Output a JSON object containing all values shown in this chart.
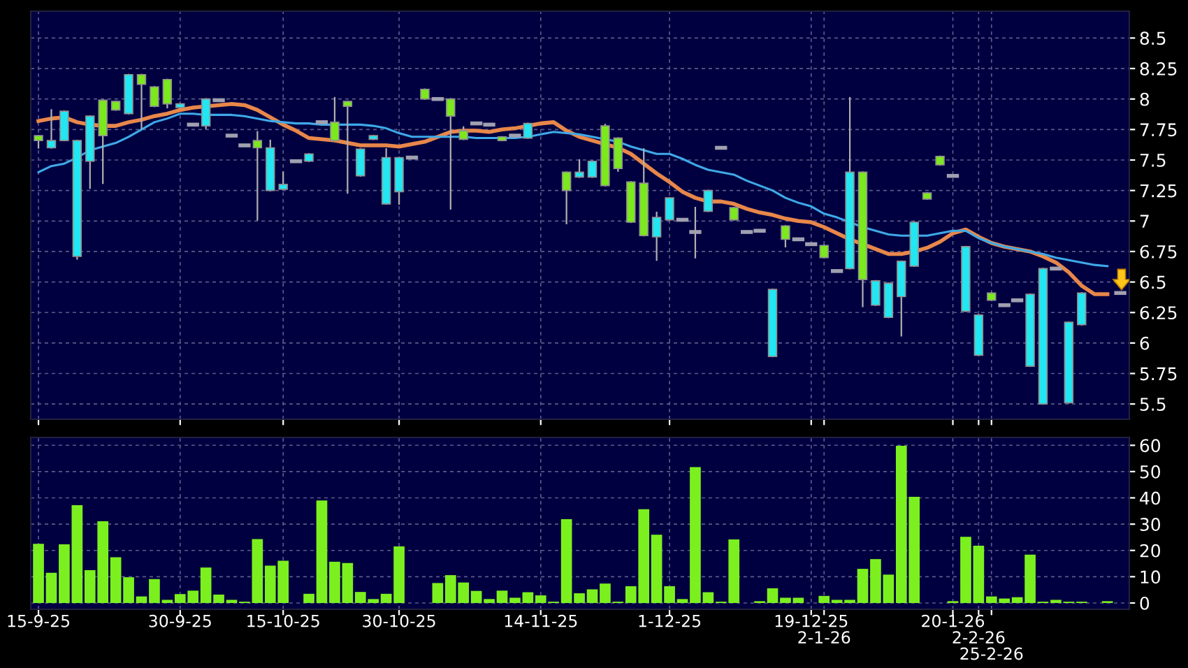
{
  "chart_data": [
    {
      "type": "candlestick",
      "categories": [
        null,
        null,
        null,
        null,
        null,
        null,
        null,
        null,
        null,
        null,
        null,
        null,
        null,
        null,
        null,
        null,
        null,
        null,
        null,
        null,
        null,
        null,
        null,
        null,
        null,
        null,
        null,
        null,
        null,
        null,
        null,
        null,
        null,
        null,
        null,
        null,
        null,
        null,
        null,
        null,
        null,
        null,
        null,
        null,
        null,
        null,
        null,
        null,
        null,
        null,
        null,
        null,
        null,
        null,
        null,
        null,
        null,
        null,
        null,
        null,
        null,
        null,
        null,
        null,
        null,
        null,
        null,
        null,
        null,
        null,
        null,
        null,
        null,
        null,
        null,
        null,
        null,
        null,
        null,
        null,
        null,
        null,
        null,
        null,
        null
      ],
      "ohlc": [
        [
          7.7,
          7.7,
          7.6,
          7.66
        ],
        [
          7.6,
          7.91,
          7.6,
          7.66
        ],
        [
          7.66,
          7.9,
          7.66,
          7.9
        ],
        [
          6.71,
          7.66,
          6.69,
          7.66
        ],
        [
          7.49,
          7.86,
          7.27,
          7.86
        ],
        [
          7.99,
          7.99,
          7.31,
          7.7
        ],
        [
          7.98,
          7.98,
          7.91,
          7.91
        ],
        [
          7.88,
          8.2,
          7.88,
          8.2
        ],
        [
          8.2,
          8.2,
          7.76,
          8.12
        ],
        [
          8.1,
          8.1,
          7.94,
          7.94
        ],
        [
          8.16,
          8.16,
          7.93,
          7.96
        ],
        [
          7.93,
          7.96,
          7.93,
          7.96
        ],
        [
          7.79,
          7.79,
          7.79,
          7.79
        ],
        [
          7.78,
          8.0,
          7.76,
          8.0
        ],
        [
          7.99,
          7.99,
          7.99,
          7.99
        ],
        [
          7.7,
          7.7,
          7.7,
          7.7
        ],
        [
          7.62,
          7.62,
          7.62,
          7.62
        ],
        [
          7.66,
          7.73,
          7.01,
          7.6
        ],
        [
          7.25,
          7.66,
          7.25,
          7.6
        ],
        [
          7.26,
          7.4,
          7.26,
          7.3
        ],
        [
          7.49,
          7.49,
          7.49,
          7.49
        ],
        [
          7.49,
          7.55,
          7.49,
          7.55
        ],
        [
          7.81,
          7.81,
          7.81,
          7.81
        ],
        [
          7.81,
          8.01,
          7.66,
          7.66
        ],
        [
          7.98,
          7.98,
          7.23,
          7.94
        ],
        [
          7.37,
          7.59,
          7.37,
          7.59
        ],
        [
          7.67,
          7.7,
          7.67,
          7.7
        ],
        [
          7.14,
          7.59,
          7.14,
          7.52
        ],
        [
          7.24,
          7.52,
          7.14,
          7.52
        ],
        [
          7.52,
          7.52,
          7.52,
          7.52
        ],
        [
          8.08,
          8.08,
          8.0,
          8.0
        ],
        [
          8.0,
          8.0,
          8.0,
          8.0
        ],
        [
          8.0,
          8.0,
          7.1,
          7.86
        ],
        [
          7.74,
          7.77,
          7.67,
          7.67
        ],
        [
          7.8,
          7.8,
          7.8,
          7.8
        ],
        [
          7.79,
          7.79,
          7.79,
          7.79
        ],
        [
          7.69,
          7.69,
          7.66,
          7.66
        ],
        [
          7.7,
          7.7,
          7.7,
          7.7
        ],
        [
          7.68,
          7.8,
          7.68,
          7.8
        ],
        null,
        null,
        [
          7.4,
          7.4,
          6.98,
          7.25
        ],
        [
          7.36,
          7.5,
          7.36,
          7.4
        ],
        [
          7.36,
          7.49,
          7.36,
          7.49
        ],
        [
          7.78,
          7.79,
          7.29,
          7.29
        ],
        [
          7.68,
          7.68,
          7.41,
          7.43
        ],
        [
          7.32,
          7.32,
          6.99,
          6.99
        ],
        [
          7.31,
          7.59,
          6.88,
          6.88
        ],
        [
          6.87,
          7.07,
          6.68,
          7.03
        ],
        [
          7.01,
          7.19,
          7.01,
          7.19
        ],
        [
          7.01,
          7.01,
          7.01,
          7.01
        ],
        [
          6.91,
          7.11,
          6.7,
          6.91
        ],
        [
          7.08,
          7.25,
          7.08,
          7.25
        ],
        [
          7.6,
          7.6,
          7.6,
          7.6
        ],
        [
          7.11,
          7.11,
          7.01,
          7.01
        ],
        [
          6.91,
          6.91,
          6.91,
          6.91
        ],
        [
          6.92,
          6.92,
          6.92,
          6.92
        ],
        [
          5.89,
          6.44,
          5.89,
          6.44
        ],
        [
          6.96,
          6.96,
          6.79,
          6.85
        ],
        [
          6.85,
          6.85,
          6.85,
          6.85
        ],
        [
          6.81,
          6.81,
          6.81,
          6.81
        ],
        [
          6.8,
          6.8,
          6.7,
          6.7
        ],
        [
          6.59,
          6.59,
          6.59,
          6.59
        ],
        [
          6.61,
          8.01,
          6.61,
          7.4
        ],
        [
          7.4,
          7.4,
          6.3,
          6.52
        ],
        [
          6.31,
          6.51,
          6.31,
          6.51
        ],
        [
          6.21,
          6.49,
          6.21,
          6.49
        ],
        [
          6.38,
          6.67,
          6.06,
          6.67
        ],
        [
          6.63,
          6.99,
          6.63,
          6.99
        ],
        [
          7.23,
          7.23,
          7.18,
          7.18
        ],
        [
          7.53,
          7.53,
          7.46,
          7.46
        ],
        [
          7.37,
          7.37,
          7.37,
          7.37
        ],
        [
          6.26,
          6.79,
          6.26,
          6.79
        ],
        [
          5.9,
          6.23,
          5.9,
          6.23
        ],
        [
          6.41,
          6.41,
          6.35,
          6.35
        ],
        [
          6.31,
          6.31,
          6.31,
          6.31
        ],
        [
          6.35,
          6.35,
          6.35,
          6.35
        ],
        [
          5.81,
          6.4,
          5.81,
          6.4
        ],
        [
          5.5,
          6.61,
          5.5,
          6.61
        ],
        [
          6.61,
          6.61,
          6.61,
          6.61
        ],
        [
          5.51,
          6.17,
          5.51,
          6.17
        ],
        [
          6.15,
          6.41,
          6.15,
          6.41
        ],
        null,
        null,
        [
          6.41,
          6.41,
          6.41,
          6.41
        ]
      ],
      "colors": [
        "#7ce81e",
        "#22e6f2",
        "#22e6f2",
        "#22e6f2",
        "#22e6f2",
        "#7ce81e",
        "#7ce81e",
        "#22e6f2",
        "#7ce81e",
        "#7ce81e",
        "#7ce81e",
        "#22e6f2",
        "#a0a0b0",
        "#22e6f2",
        "#a0a0b0",
        "#a0a0b0",
        "#a0a0b0",
        "#7ce81e",
        "#22e6f2",
        "#22e6f2",
        "#a0a0b0",
        "#22e6f2",
        "#a0a0b0",
        "#7ce81e",
        "#7ce81e",
        "#22e6f2",
        "#22e6f2",
        "#22e6f2",
        "#22e6f2",
        "#a0a0b0",
        "#7ce81e",
        "#a0a0b0",
        "#7ce81e",
        "#7ce81e",
        "#a0a0b0",
        "#a0a0b0",
        "#7ce81e",
        "#a0a0b0",
        "#22e6f2",
        null,
        null,
        "#7ce81e",
        "#22e6f2",
        "#22e6f2",
        "#7ce81e",
        "#7ce81e",
        "#7ce81e",
        "#7ce81e",
        "#22e6f2",
        "#22e6f2",
        "#a0a0b0",
        "#a0a0b0",
        "#22e6f2",
        "#a0a0b0",
        "#7ce81e",
        "#a0a0b0",
        "#a0a0b0",
        "#22e6f2",
        "#7ce81e",
        "#a0a0b0",
        "#a0a0b0",
        "#7ce81e",
        "#a0a0b0",
        "#22e6f2",
        "#7ce81e",
        "#22e6f2",
        "#22e6f2",
        "#22e6f2",
        "#22e6f2",
        "#7ce81e",
        "#7ce81e",
        "#a0a0b0",
        "#22e6f2",
        "#22e6f2",
        "#7ce81e",
        "#a0a0b0",
        "#a0a0b0",
        "#22e6f2",
        "#22e6f2",
        "#a0a0b0",
        "#22e6f2",
        "#22e6f2",
        null,
        null,
        "#a0a0b0"
      ],
      "series": [
        {
          "type": "line",
          "color": "#e8874a",
          "values": [
            7.82,
            7.84,
            7.85,
            7.81,
            7.79,
            7.78,
            7.78,
            7.81,
            7.83,
            7.86,
            7.88,
            7.91,
            7.93,
            7.94,
            7.95,
            7.96,
            7.95,
            7.91,
            7.85,
            7.79,
            7.74,
            7.68,
            7.67,
            7.66,
            7.64,
            7.62,
            7.62,
            7.62,
            7.61,
            7.63,
            7.65,
            7.69,
            7.73,
            7.74,
            7.74,
            7.73,
            7.75,
            7.76,
            7.78,
            7.8,
            7.81,
            7.74,
            7.69,
            7.66,
            7.63,
            7.6,
            7.55,
            7.47,
            7.39,
            7.32,
            7.24,
            7.19,
            7.16,
            7.16,
            7.14,
            7.1,
            7.07,
            7.05,
            7.02,
            7.0,
            6.99,
            6.95,
            6.9,
            6.85,
            6.81,
            6.77,
            6.73,
            6.73,
            6.75,
            6.78,
            6.83,
            6.9,
            6.93,
            6.87,
            6.82,
            6.79,
            6.77,
            6.75,
            6.71,
            6.66,
            6.58,
            6.47,
            6.4,
            6.4,
            null
          ]
        },
        {
          "type": "line",
          "color": "#3fa9e8",
          "values": [
            7.4,
            7.45,
            7.47,
            7.52,
            7.58,
            7.61,
            7.64,
            7.69,
            7.75,
            7.81,
            7.84,
            7.88,
            7.88,
            7.87,
            7.87,
            7.87,
            7.86,
            7.84,
            7.82,
            7.81,
            7.8,
            7.8,
            7.79,
            7.79,
            7.79,
            7.79,
            7.78,
            7.76,
            7.72,
            7.69,
            7.69,
            7.69,
            7.69,
            7.69,
            7.68,
            7.68,
            7.68,
            7.68,
            7.69,
            7.71,
            7.73,
            7.72,
            7.71,
            7.69,
            7.67,
            7.65,
            7.61,
            7.58,
            7.55,
            7.55,
            7.51,
            7.46,
            7.42,
            7.4,
            7.38,
            7.33,
            7.29,
            7.25,
            7.19,
            7.15,
            7.12,
            7.06,
            7.03,
            6.99,
            6.95,
            6.92,
            6.89,
            6.88,
            6.88,
            6.88,
            6.9,
            6.92,
            6.92,
            6.86,
            6.82,
            6.79,
            6.77,
            6.75,
            6.73,
            6.7,
            6.68,
            6.66,
            6.64,
            6.63,
            null
          ]
        }
      ],
      "ylim": [
        5.375,
        8.72
      ],
      "yticks": [
        5.5,
        5.75,
        6,
        6.25,
        6.5,
        6.75,
        7,
        7.25,
        7.5,
        7.75,
        8,
        8.25,
        8.5
      ],
      "grid": true,
      "tick_labels": "y"
    },
    {
      "type": "bar",
      "categories": [
        "15-9-25",
        null,
        null,
        null,
        null,
        null,
        null,
        null,
        null,
        null,
        null,
        "30-9-25",
        null,
        null,
        null,
        null,
        null,
        null,
        null,
        "15-10-25",
        null,
        null,
        null,
        null,
        null,
        null,
        null,
        null,
        "30-10-25",
        null,
        null,
        null,
        null,
        null,
        null,
        null,
        null,
        null,
        null,
        "14-11-25",
        null,
        null,
        null,
        null,
        null,
        null,
        null,
        null,
        null,
        "1-12-25",
        null,
        null,
        null,
        null,
        null,
        null,
        null,
        null,
        null,
        null,
        "19-12-25",
        "2-1-26",
        null,
        null,
        null,
        null,
        null,
        null,
        null,
        null,
        null,
        "20-1-26",
        null,
        "2-2-26",
        "25-2-26",
        null,
        null,
        null,
        null,
        null,
        null,
        null,
        null,
        null,
        null
      ],
      "values": [
        22.5,
        11.5,
        22.3,
        37.2,
        12.5,
        31.1,
        17.4,
        9.8,
        2.5,
        9.1,
        1.2,
        3.4,
        4.7,
        13.5,
        3.2,
        1.2,
        0.5,
        24.3,
        14.2,
        16.1,
        0,
        3.5,
        39.0,
        15.7,
        15.2,
        4.2,
        1.5,
        3.5,
        21.5,
        0,
        0,
        7.6,
        10.6,
        7.8,
        4.6,
        1.5,
        4.7,
        2.0,
        4.1,
        2.9,
        0.5,
        31.9,
        3.7,
        5.2,
        7.4,
        0.5,
        6.4,
        35.7,
        26.0,
        6.4,
        1.5,
        51.7,
        4.1,
        0.5,
        24.2,
        0,
        0.7,
        5.6,
        2.0,
        2.0,
        0,
        2.7,
        1.2,
        1.2,
        13.0,
        16.7,
        10.8,
        59.8,
        40.4,
        0,
        0,
        0.7,
        25.2,
        21.8,
        2.5,
        1.7,
        2.2,
        18.4,
        0.5,
        1.2,
        0.5,
        0.5,
        0,
        0.7,
        0
      ],
      "color": "#7cf01e",
      "ylim": [
        -2.4,
        63
      ],
      "yticks": [
        0,
        10,
        20,
        30,
        40,
        50,
        60
      ],
      "grid": true
    }
  ]
}
